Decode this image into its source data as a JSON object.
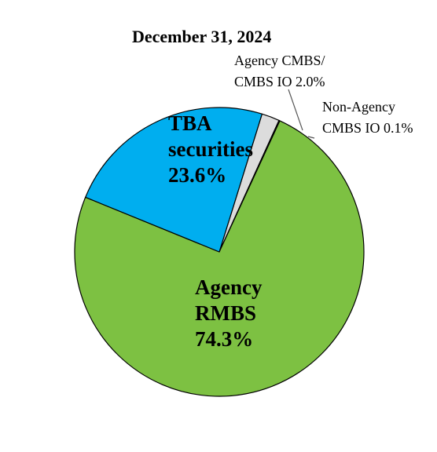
{
  "chart_data": {
    "type": "pie",
    "title": "December 31, 2024",
    "slices": [
      {
        "label_lines": [
          "Agency",
          "RMBS",
          "74.3%"
        ],
        "value": 74.3,
        "color": "#7dc142"
      },
      {
        "label_lines": [
          "TBA",
          "securities",
          "23.6%"
        ],
        "value": 23.6,
        "color": "#00aeef"
      },
      {
        "label_lines": [
          "Agency CMBS/",
          "CMBS IO 2.0%"
        ],
        "value": 2.0,
        "color": "#dcdcdc"
      },
      {
        "label_lines": [
          "Non-Agency",
          "CMBS IO 0.1%"
        ],
        "value": 0.1,
        "color": "#a6a6a6"
      }
    ],
    "legend": "none",
    "grid": false
  }
}
